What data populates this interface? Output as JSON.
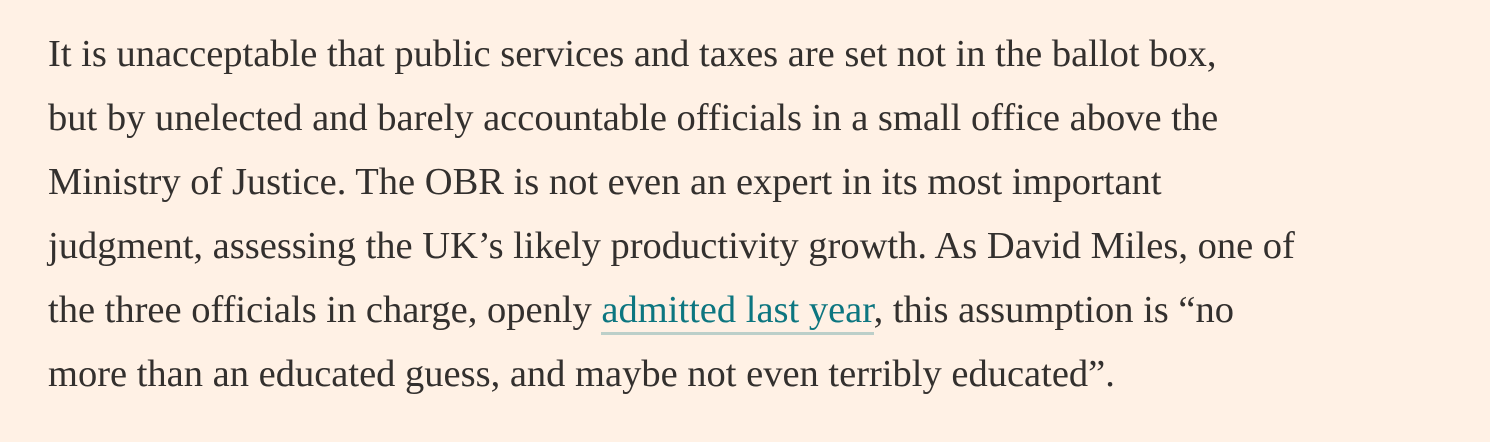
{
  "article": {
    "paragraph": {
      "line1": "It is unacceptable that public services and taxes are set not in the ballot box,",
      "line2": "but by unelected and barely accountable officials in a small office above the",
      "line3": "Ministry of Justice. The OBR is not even an expert in its most important",
      "line4": "judgment, assessing the UK’s likely productivity growth. As David Miles, one of",
      "line5_before_link": "the three officials in charge, openly ",
      "link_text": "admitted last year",
      "line5_after_link": ", this assumption is “no",
      "line6": "more than an educated guess, and maybe not even terribly educated”."
    },
    "colors": {
      "background": "#fff1e5",
      "text": "#33302e",
      "link": "#0d7680"
    }
  }
}
